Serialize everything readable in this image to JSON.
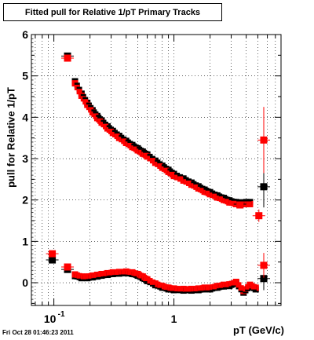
{
  "title": "Fitted pull for Relative 1/pT  Primary Tracks",
  "timestamp": "Fri Oct 28 01:46:23 2011",
  "chart_data": {
    "type": "scatter",
    "title": "Fitted pull for Relative 1/pT  Primary Tracks",
    "xlabel": "pT (GeV/c)",
    "ylabel": "pull for Relative 1/pT",
    "xscale": "log",
    "xlim": [
      0.065,
      7.8
    ],
    "ylim": [
      -0.55,
      6
    ],
    "x_tick_labels": [
      {
        "value": 0.1,
        "base": "10",
        "exp": "-1"
      },
      {
        "value": 1,
        "base": "1",
        "exp": ""
      }
    ],
    "y_ticks": [
      0,
      1,
      2,
      3,
      4,
      5,
      6
    ],
    "grid": true,
    "series": [
      {
        "color": "#000000",
        "marker": "square",
        "points": [
          [
            0.097,
            0.55,
            0.012
          ],
          [
            0.13,
            5.48,
            0.006
          ],
          [
            0.13,
            0.32,
            0.006
          ],
          [
            3.55,
            1.9,
            0.05
          ],
          [
            5.6,
            2.32,
            0.5
          ],
          [
            5.6,
            0.1,
            0.28
          ]
        ]
      },
      {
        "color": "#ff0000",
        "marker": "square",
        "points": [
          [
            0.097,
            0.7,
            0.02
          ],
          [
            0.13,
            5.43,
            0.01
          ],
          [
            0.13,
            0.38,
            0.01
          ],
          [
            3.55,
            1.88,
            0.04
          ],
          [
            5.1,
            1.62,
            0.15
          ],
          [
            5.6,
            3.45,
            0.8
          ],
          [
            5.6,
            0.42,
            0.3
          ]
        ]
      }
    ],
    "upper_band": {
      "x": [
        0.15,
        0.17,
        0.19,
        0.21,
        0.23,
        0.25,
        0.28,
        0.31,
        0.35,
        0.4,
        0.45,
        0.5,
        0.55,
        0.6,
        0.7,
        0.8,
        0.9,
        1.0,
        1.2,
        1.4,
        1.6,
        1.8,
        2.0,
        2.3,
        2.6,
        2.9,
        3.3,
        4.0,
        4.3
      ],
      "y": [
        4.82,
        4.52,
        4.3,
        4.12,
        3.98,
        3.87,
        3.73,
        3.62,
        3.5,
        3.38,
        3.28,
        3.2,
        3.12,
        3.05,
        2.9,
        2.78,
        2.68,
        2.58,
        2.47,
        2.37,
        2.28,
        2.2,
        2.14,
        2.06,
        2.0,
        1.94,
        1.9,
        1.9,
        1.9
      ],
      "black_offset": 0.05
    },
    "lower_band": {
      "x": [
        0.15,
        0.17,
        0.19,
        0.21,
        0.23,
        0.25,
        0.28,
        0.31,
        0.35,
        0.4,
        0.45,
        0.5,
        0.55,
        0.6,
        0.7,
        0.8,
        0.9,
        1.0,
        1.2,
        1.4,
        1.6,
        1.8,
        2.0,
        2.3,
        2.6,
        2.9,
        3.3,
        3.8,
        4.3,
        4.8
      ],
      "y": [
        0.2,
        0.15,
        0.15,
        0.17,
        0.19,
        0.21,
        0.23,
        0.25,
        0.26,
        0.27,
        0.25,
        0.21,
        0.15,
        0.08,
        -0.02,
        -0.08,
        -0.12,
        -0.14,
        -0.15,
        -0.15,
        -0.14,
        -0.12,
        -0.12,
        -0.08,
        -0.05,
        -0.04,
        0.02,
        -0.2,
        -0.05,
        -0.12
      ],
      "black_offset": -0.04
    }
  }
}
